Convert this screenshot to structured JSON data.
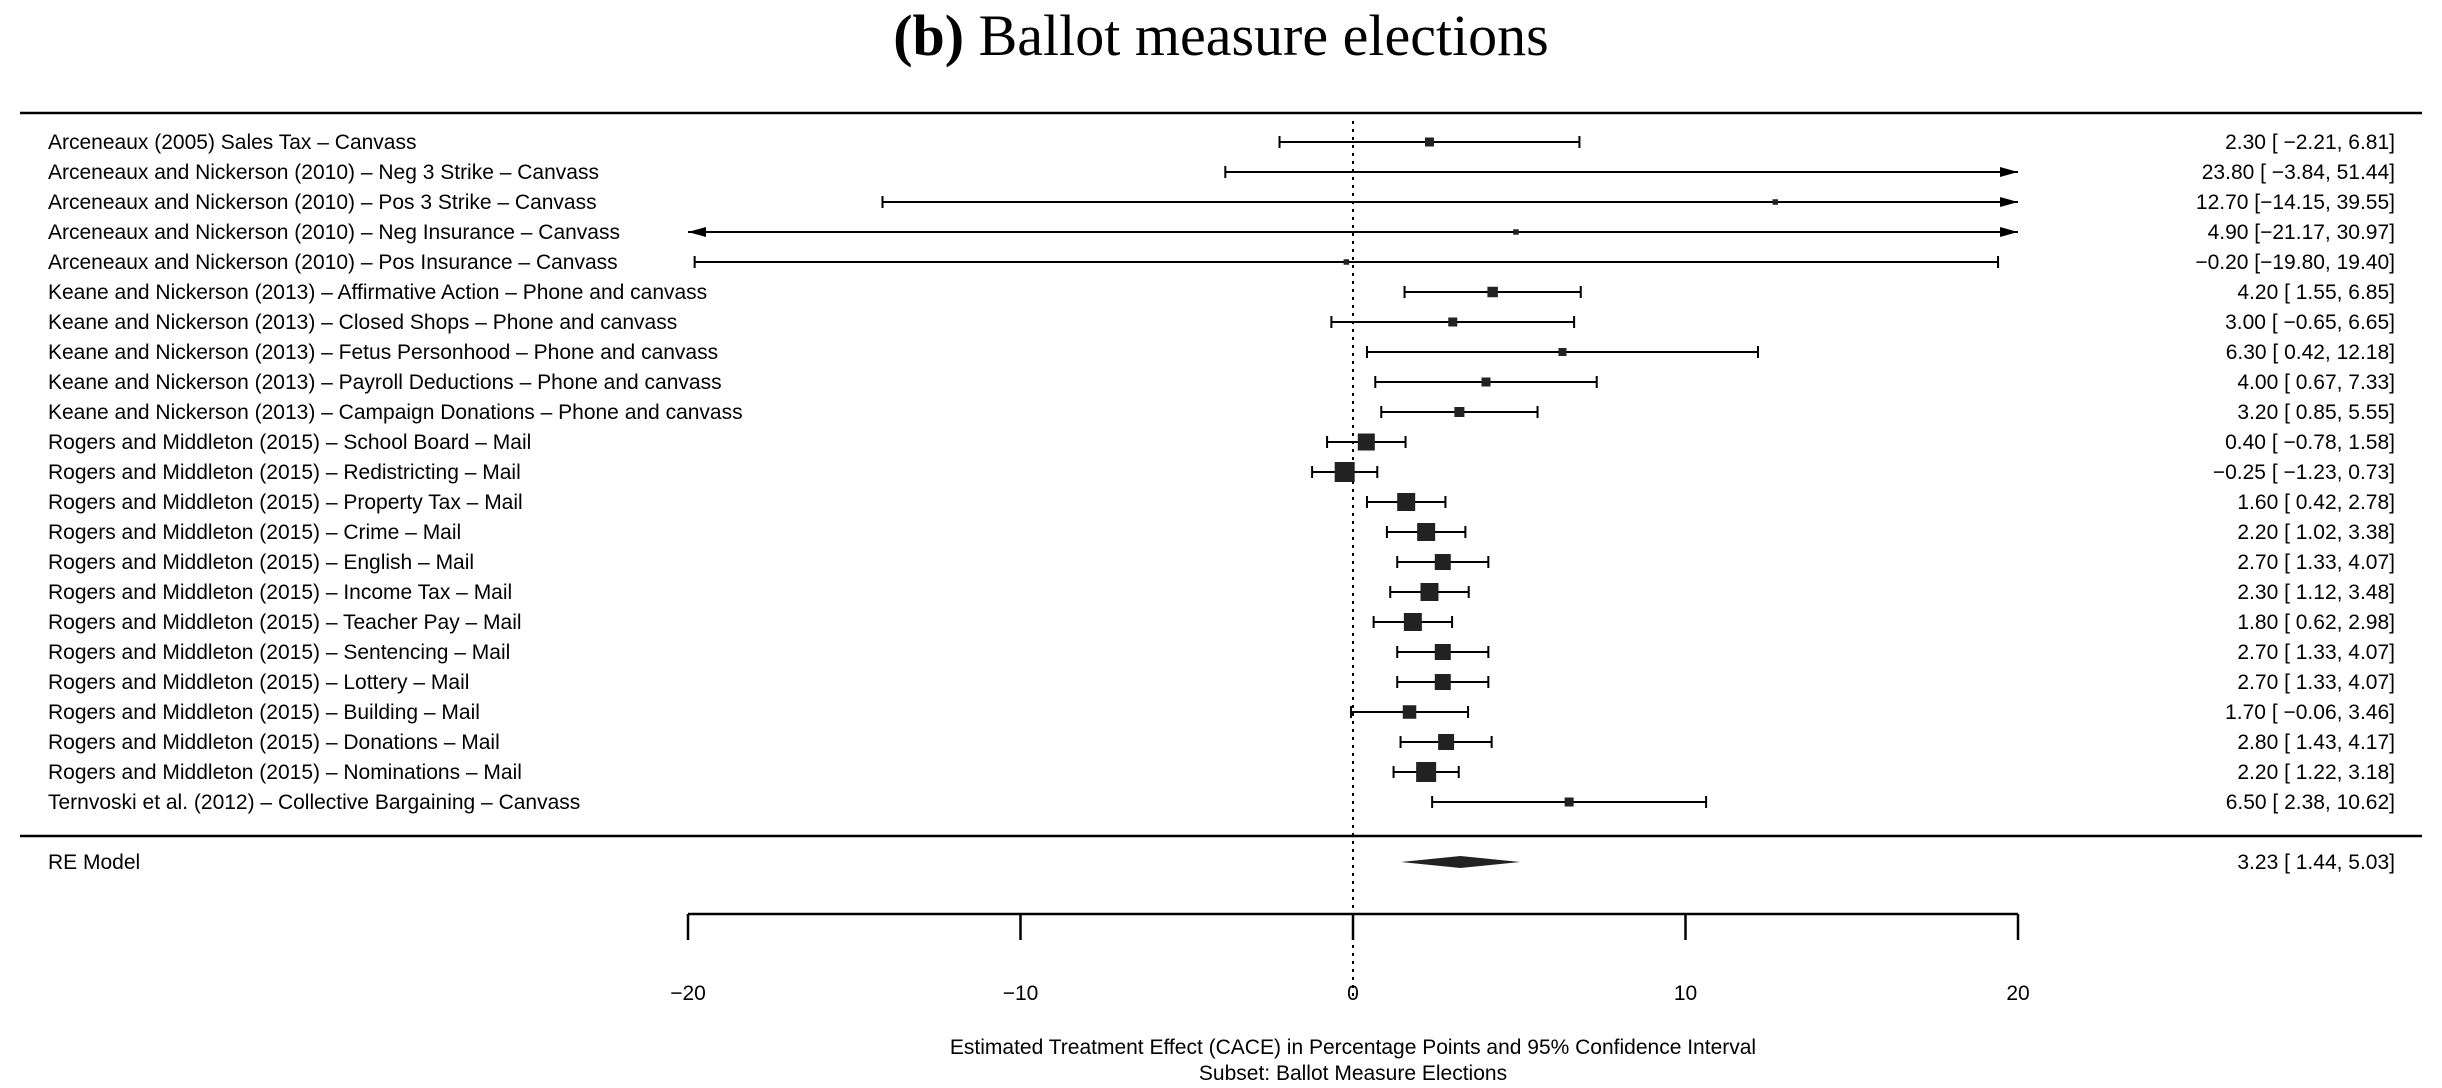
{
  "chart_data": {
    "type": "forest",
    "title_bold": "(b)",
    "title_rest": " Ballot measure elections",
    "xlabel": "Estimated Treatment Effect (CACE) in Percentage Points and 95% Confidence Interval",
    "subtitle": "Subset: Ballot Measure Elections",
    "xlim": [
      -20,
      20
    ],
    "xticks": [
      -20,
      -10,
      0,
      10,
      20
    ],
    "xtick_labels": [
      "−20",
      "−10",
      "0",
      "10",
      "20"
    ],
    "reference_line": 0,
    "studies": [
      {
        "label": "Arceneaux (2005) Sales Tax – Canvass",
        "estimate": 2.3,
        "lower": -2.21,
        "upper": 6.81,
        "ci_text": "2.30 [ −2.21,  6.81]",
        "weight": 1.0
      },
      {
        "label": "Arceneaux and Nickerson (2010) – Neg 3 Strike – Canvass",
        "estimate": 23.8,
        "lower": -3.84,
        "upper": 51.44,
        "ci_text": "23.80 [ −3.84, 51.44]",
        "weight": 0.3
      },
      {
        "label": "Arceneaux and Nickerson (2010) – Pos 3 Strike – Canvass",
        "estimate": 12.7,
        "lower": -14.15,
        "upper": 39.55,
        "ci_text": "12.70 [−14.15, 39.55]",
        "weight": 0.3
      },
      {
        "label": "Arceneaux and Nickerson (2010) – Neg Insurance – Canvass",
        "estimate": 4.9,
        "lower": -21.17,
        "upper": 30.97,
        "ci_text": "4.90 [−21.17, 30.97]",
        "weight": 0.3
      },
      {
        "label": "Arceneaux and Nickerson (2010) – Pos Insurance – Canvass",
        "estimate": -0.2,
        "lower": -19.8,
        "upper": 19.4,
        "ci_text": "−0.20 [−19.80, 19.40]",
        "weight": 0.3
      },
      {
        "label": "Keane and Nickerson (2013) – Affirmative Action – Phone and canvass",
        "estimate": 4.2,
        "lower": 1.55,
        "upper": 6.85,
        "ci_text": "4.20 [  1.55,  6.85]",
        "weight": 1.3
      },
      {
        "label": "Keane and Nickerson (2013) – Closed Shops – Phone and canvass",
        "estimate": 3.0,
        "lower": -0.65,
        "upper": 6.65,
        "ci_text": "3.00 [ −0.65,  6.65]",
        "weight": 1.0
      },
      {
        "label": "Keane and Nickerson (2013) – Fetus Personhood – Phone and canvass",
        "estimate": 6.3,
        "lower": 0.42,
        "upper": 12.18,
        "ci_text": "6.30 [  0.42, 12.18]",
        "weight": 0.8
      },
      {
        "label": "Keane and Nickerson (2013) – Payroll Deductions – Phone and canvass",
        "estimate": 4.0,
        "lower": 0.67,
        "upper": 7.33,
        "ci_text": "4.00 [  0.67,  7.33]",
        "weight": 1.0
      },
      {
        "label": "Keane and Nickerson (2013) – Campaign Donations – Phone and canvass",
        "estimate": 3.2,
        "lower": 0.85,
        "upper": 5.55,
        "ci_text": "3.20 [  0.85,  5.55]",
        "weight": 1.2
      },
      {
        "label": "Rogers and Middleton (2015) – School Board – Mail",
        "estimate": 0.4,
        "lower": -0.78,
        "upper": 1.58,
        "ci_text": "0.40 [ −0.78,  1.58]",
        "weight": 2.6
      },
      {
        "label": "Rogers and Middleton (2015) – Redistricting – Mail",
        "estimate": -0.25,
        "lower": -1.23,
        "upper": 0.73,
        "ci_text": "−0.25 [ −1.23,  0.73]",
        "weight": 3.2
      },
      {
        "label": "Rogers and Middleton (2015) – Property Tax – Mail",
        "estimate": 1.6,
        "lower": 0.42,
        "upper": 2.78,
        "ci_text": "1.60 [  0.42,  2.78]",
        "weight": 2.8
      },
      {
        "label": "Rogers and Middleton (2015) – Crime – Mail",
        "estimate": 2.2,
        "lower": 1.02,
        "upper": 3.38,
        "ci_text": "2.20 [  1.02,  3.38]",
        "weight": 2.8
      },
      {
        "label": "Rogers and Middleton (2015) – English – Mail",
        "estimate": 2.7,
        "lower": 1.33,
        "upper": 4.07,
        "ci_text": "2.70 [  1.33,  4.07]",
        "weight": 2.4
      },
      {
        "label": "Rogers and Middleton (2015) – Income Tax – Mail",
        "estimate": 2.3,
        "lower": 1.12,
        "upper": 3.48,
        "ci_text": "2.30 [  1.12,  3.48]",
        "weight": 2.8
      },
      {
        "label": "Rogers and Middleton (2015) – Teacher Pay – Mail",
        "estimate": 1.8,
        "lower": 0.62,
        "upper": 2.98,
        "ci_text": "1.80 [  0.62,  2.98]",
        "weight": 2.8
      },
      {
        "label": "Rogers and Middleton (2015) – Sentencing – Mail",
        "estimate": 2.7,
        "lower": 1.33,
        "upper": 4.07,
        "ci_text": "2.70 [  1.33,  4.07]",
        "weight": 2.4
      },
      {
        "label": "Rogers and Middleton (2015) – Lottery – Mail",
        "estimate": 2.7,
        "lower": 1.33,
        "upper": 4.07,
        "ci_text": "2.70 [  1.33,  4.07]",
        "weight": 2.4
      },
      {
        "label": "Rogers and Middleton (2015) – Building – Mail",
        "estimate": 1.7,
        "lower": -0.06,
        "upper": 3.46,
        "ci_text": "1.70 [ −0.06,  3.46]",
        "weight": 1.9
      },
      {
        "label": "Rogers and Middleton (2015) – Donations – Mail",
        "estimate": 2.8,
        "lower": 1.43,
        "upper": 4.17,
        "ci_text": "2.80 [  1.43,  4.17]",
        "weight": 2.4
      },
      {
        "label": "Rogers and Middleton (2015) – Nominations – Mail",
        "estimate": 2.2,
        "lower": 1.22,
        "upper": 3.18,
        "ci_text": "2.20 [  1.22,  3.18]",
        "weight": 3.2
      },
      {
        "label": "Ternvoski et al. (2012) – Collective Bargaining – Canvass",
        "estimate": 6.5,
        "lower": 2.38,
        "upper": 10.62,
        "ci_text": "6.50 [  2.38, 10.62]",
        "weight": 1.0
      }
    ],
    "summary": {
      "label": "RE Model",
      "estimate": 3.23,
      "lower": 1.44,
      "upper": 5.03,
      "ci_text": "3.23 [  1.44,  5.03]"
    }
  }
}
